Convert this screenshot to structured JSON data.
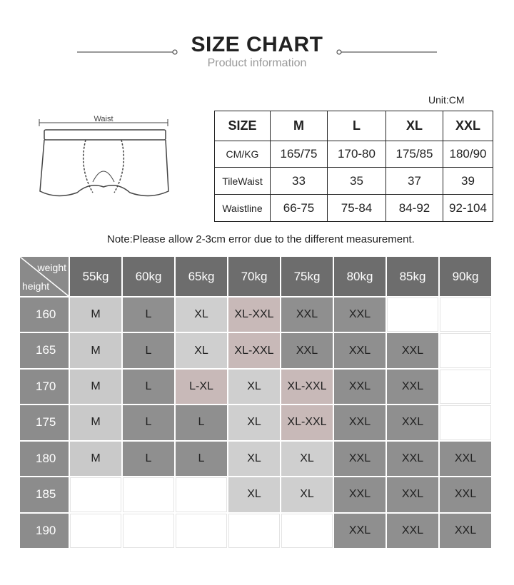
{
  "header": {
    "title": "SIZE CHART",
    "subtitle": "Product information"
  },
  "unit": "Unit:CM",
  "diagram": {
    "label": "Waist"
  },
  "size_table": {
    "header": [
      "SIZE",
      "M",
      "L",
      "XL",
      "XXL"
    ],
    "rows": [
      [
        "CM/KG",
        "165/75",
        "170-80",
        "175/85",
        "180/90"
      ],
      [
        "TileWaist",
        "33",
        "35",
        "37",
        "39"
      ],
      [
        "Waistline",
        "66-75",
        "75-84",
        "84-92",
        "92-104"
      ]
    ]
  },
  "note": "Note:Please allow 2-3cm error due to the different measurement.",
  "grid": {
    "corner": {
      "top": "weight",
      "bottom": "height"
    },
    "columns": [
      "55kg",
      "60kg",
      "65kg",
      "70kg",
      "75kg",
      "80kg",
      "85kg",
      "90kg"
    ],
    "rows": [
      {
        "label": "160",
        "cells": [
          "M",
          "L",
          "XL",
          "XL-XXL",
          "XXL",
          "XXL",
          null,
          null
        ],
        "colors": [
          "#c9c9c9",
          "#8f8f8f",
          "#cfcfcf",
          "#c8b9b8",
          "#8f8f8f",
          "#8f8f8f",
          "#ffffff",
          "#ffffff"
        ]
      },
      {
        "label": "165",
        "cells": [
          "M",
          "L",
          "XL",
          "XL-XXL",
          "XXL",
          "XXL",
          "XXL",
          null
        ],
        "colors": [
          "#c9c9c9",
          "#8f8f8f",
          "#cfcfcf",
          "#c8b9b8",
          "#8f8f8f",
          "#8f8f8f",
          "#8f8f8f",
          "#ffffff"
        ]
      },
      {
        "label": "170",
        "cells": [
          "M",
          "L",
          "L-XL",
          "XL",
          "XL-XXL",
          "XXL",
          "XXL",
          null
        ],
        "colors": [
          "#c9c9c9",
          "#8f8f8f",
          "#c8b9b8",
          "#cfcfcf",
          "#c8b9b8",
          "#8f8f8f",
          "#8f8f8f",
          "#ffffff"
        ]
      },
      {
        "label": "175",
        "cells": [
          "M",
          "L",
          "L",
          "XL",
          "XL-XXL",
          "XXL",
          "XXL",
          null
        ],
        "colors": [
          "#c9c9c9",
          "#8f8f8f",
          "#8f8f8f",
          "#cfcfcf",
          "#c8b9b8",
          "#8f8f8f",
          "#8f8f8f",
          "#ffffff"
        ]
      },
      {
        "label": "180",
        "cells": [
          "M",
          "L",
          "L",
          "XL",
          "XL",
          "XXL",
          "XXL",
          "XXL"
        ],
        "colors": [
          "#c9c9c9",
          "#8f8f8f",
          "#8f8f8f",
          "#cfcfcf",
          "#cfcfcf",
          "#8f8f8f",
          "#8f8f8f",
          "#8f8f8f"
        ]
      },
      {
        "label": "185",
        "cells": [
          null,
          null,
          null,
          "XL",
          "XL",
          "XXL",
          "XXL",
          "XXL"
        ],
        "colors": [
          "#ffffff",
          "#ffffff",
          "#ffffff",
          "#cfcfcf",
          "#cfcfcf",
          "#8f8f8f",
          "#8f8f8f",
          "#8f8f8f"
        ]
      },
      {
        "label": "190",
        "cells": [
          null,
          null,
          null,
          null,
          null,
          "XXL",
          "XXL",
          "XXL"
        ],
        "colors": [
          "#ffffff",
          "#ffffff",
          "#ffffff",
          "#ffffff",
          "#ffffff",
          "#8f8f8f",
          "#8f8f8f",
          "#8f8f8f"
        ]
      }
    ]
  }
}
